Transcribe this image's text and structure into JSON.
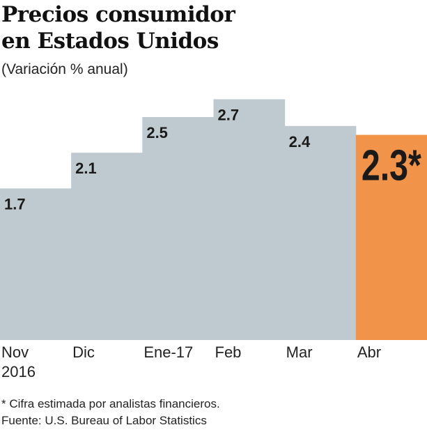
{
  "chart_data": {
    "type": "bar",
    "title": "Precios consumidor en Estados Unidos",
    "subtitle": "(Variación % anual)",
    "categories": [
      "Nov 2016",
      "Dic",
      "Ene-17",
      "Feb",
      "Mar",
      "Abr"
    ],
    "category_lines": [
      [
        "Nov",
        "2016"
      ],
      [
        "Dic"
      ],
      [
        "Ene-17"
      ],
      [
        "Feb"
      ],
      [
        "Mar"
      ],
      [
        "Abr"
      ]
    ],
    "values": [
      1.7,
      2.1,
      2.5,
      2.7,
      2.4,
      2.3
    ],
    "labels": [
      "1.7",
      "2.1",
      "2.5",
      "2.7",
      "2.4",
      "2.3*"
    ],
    "ylim": [
      0,
      2.7
    ],
    "grid": false,
    "colors": [
      "#bfcad0",
      "#bfcad0",
      "#bfcad0",
      "#bfcad0",
      "#bfcad0",
      "#f2934a"
    ]
  },
  "footnotes": {
    "note": "* Cifra estimada por analistas financieros.",
    "source": "Fuente: U.S. Bureau of Labor Statistics"
  }
}
